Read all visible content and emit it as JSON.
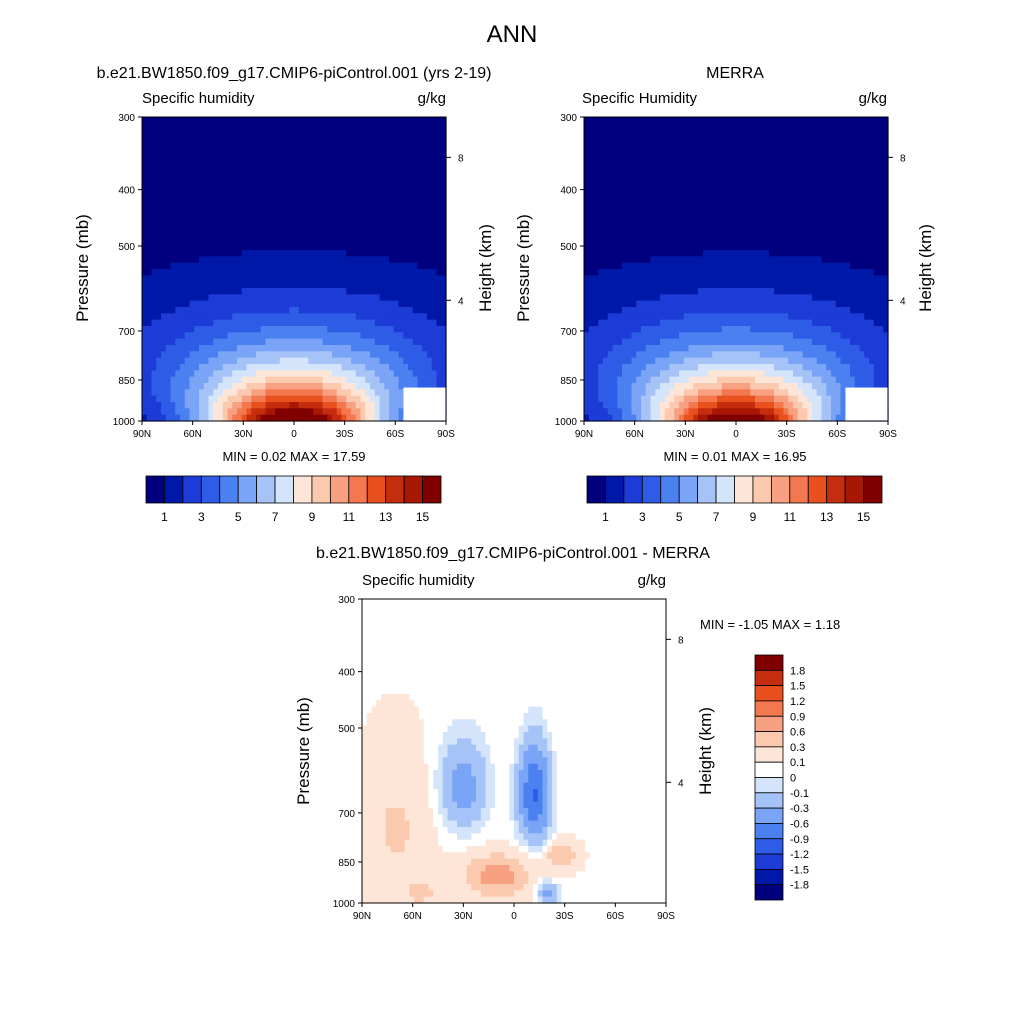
{
  "page_title": "ANN",
  "colors": {
    "full_scale": [
      "#00007f",
      "#0018a8",
      "#1d3bd6",
      "#2e5ce6",
      "#4b80f0",
      "#7aa4f5",
      "#a6c3f7",
      "#d3e4fb",
      "#fde6d8",
      "#fbc9ae",
      "#f7a182",
      "#f3784f",
      "#e8501e",
      "#c52d0f",
      "#a81604",
      "#800000"
    ],
    "diff_scale": [
      "#00007f",
      "#0018a8",
      "#1d3bd6",
      "#2e5ce6",
      "#4b80f0",
      "#7aa4f5",
      "#a6c3f7",
      "#d3e4fb",
      "#ffffff",
      "#fde6d8",
      "#fbc9ae",
      "#f7a182",
      "#f3784f",
      "#e8501e",
      "#c52d0f",
      "#800000"
    ]
  },
  "chart_data": [
    {
      "type": "heatmap",
      "panel": "model",
      "title": "b.e21.BW1850.f09_g17.CMIP6-piControl.001 (yrs 2-19)",
      "left_label": "Specific humidity",
      "units": "g/kg",
      "ylabel": "Pressure (mb)",
      "y2label": "Height (km)",
      "x_ticks": [
        "90N",
        "60N",
        "30N",
        "0",
        "30S",
        "60S",
        "90S"
      ],
      "y_ticks": [
        "300",
        "400",
        "500",
        "700",
        "850",
        "1000"
      ],
      "y2_ticks": [
        "8",
        "4"
      ],
      "stats": "MIN =   0.02  MAX =  17.59",
      "min": 0.02,
      "max": 17.59,
      "peak": 17.59
    },
    {
      "type": "heatmap",
      "panel": "obs",
      "title": "MERRA",
      "left_label": "Specific Humidity",
      "units": "g/kg",
      "ylabel": "Pressure (mb)",
      "y2label": "Height (km)",
      "x_ticks": [
        "90N",
        "60N",
        "30N",
        "0",
        "30S",
        "60S",
        "90S"
      ],
      "y_ticks": [
        "300",
        "400",
        "500",
        "700",
        "850",
        "1000"
      ],
      "y2_ticks": [
        "8",
        "4"
      ],
      "stats": "MIN =   0.01  MAX =  16.95",
      "min": 0.01,
      "max": 16.95,
      "peak": 16.95
    },
    {
      "type": "heatmap",
      "panel": "difference",
      "title": "b.e21.BW1850.f09_g17.CMIP6-piControl.001 - MERRA",
      "left_label": "Specific humidity",
      "units": "g/kg",
      "ylabel": "Pressure (mb)",
      "y2label": "Height (km)",
      "x_ticks": [
        "90N",
        "60N",
        "30N",
        "0",
        "30S",
        "60S",
        "90S"
      ],
      "y_ticks": [
        "300",
        "400",
        "500",
        "700",
        "850",
        "1000"
      ],
      "y2_ticks": [
        "8",
        "4"
      ],
      "stats": "MIN =  -1.05  MAX =   1.18",
      "min": -1.05,
      "max": 1.18
    }
  ],
  "colorbar_full": {
    "labels": [
      "1",
      "3",
      "5",
      "7",
      "9",
      "11",
      "13",
      "15"
    ]
  },
  "colorbar_diff": {
    "labels": [
      "1.8",
      "1.5",
      "1.2",
      "0.9",
      "0.6",
      "0.3",
      "0.1",
      "0",
      "-0.1",
      "-0.3",
      "-0.6",
      "-0.9",
      "-1.2",
      "-1.5",
      "-1.8"
    ]
  }
}
